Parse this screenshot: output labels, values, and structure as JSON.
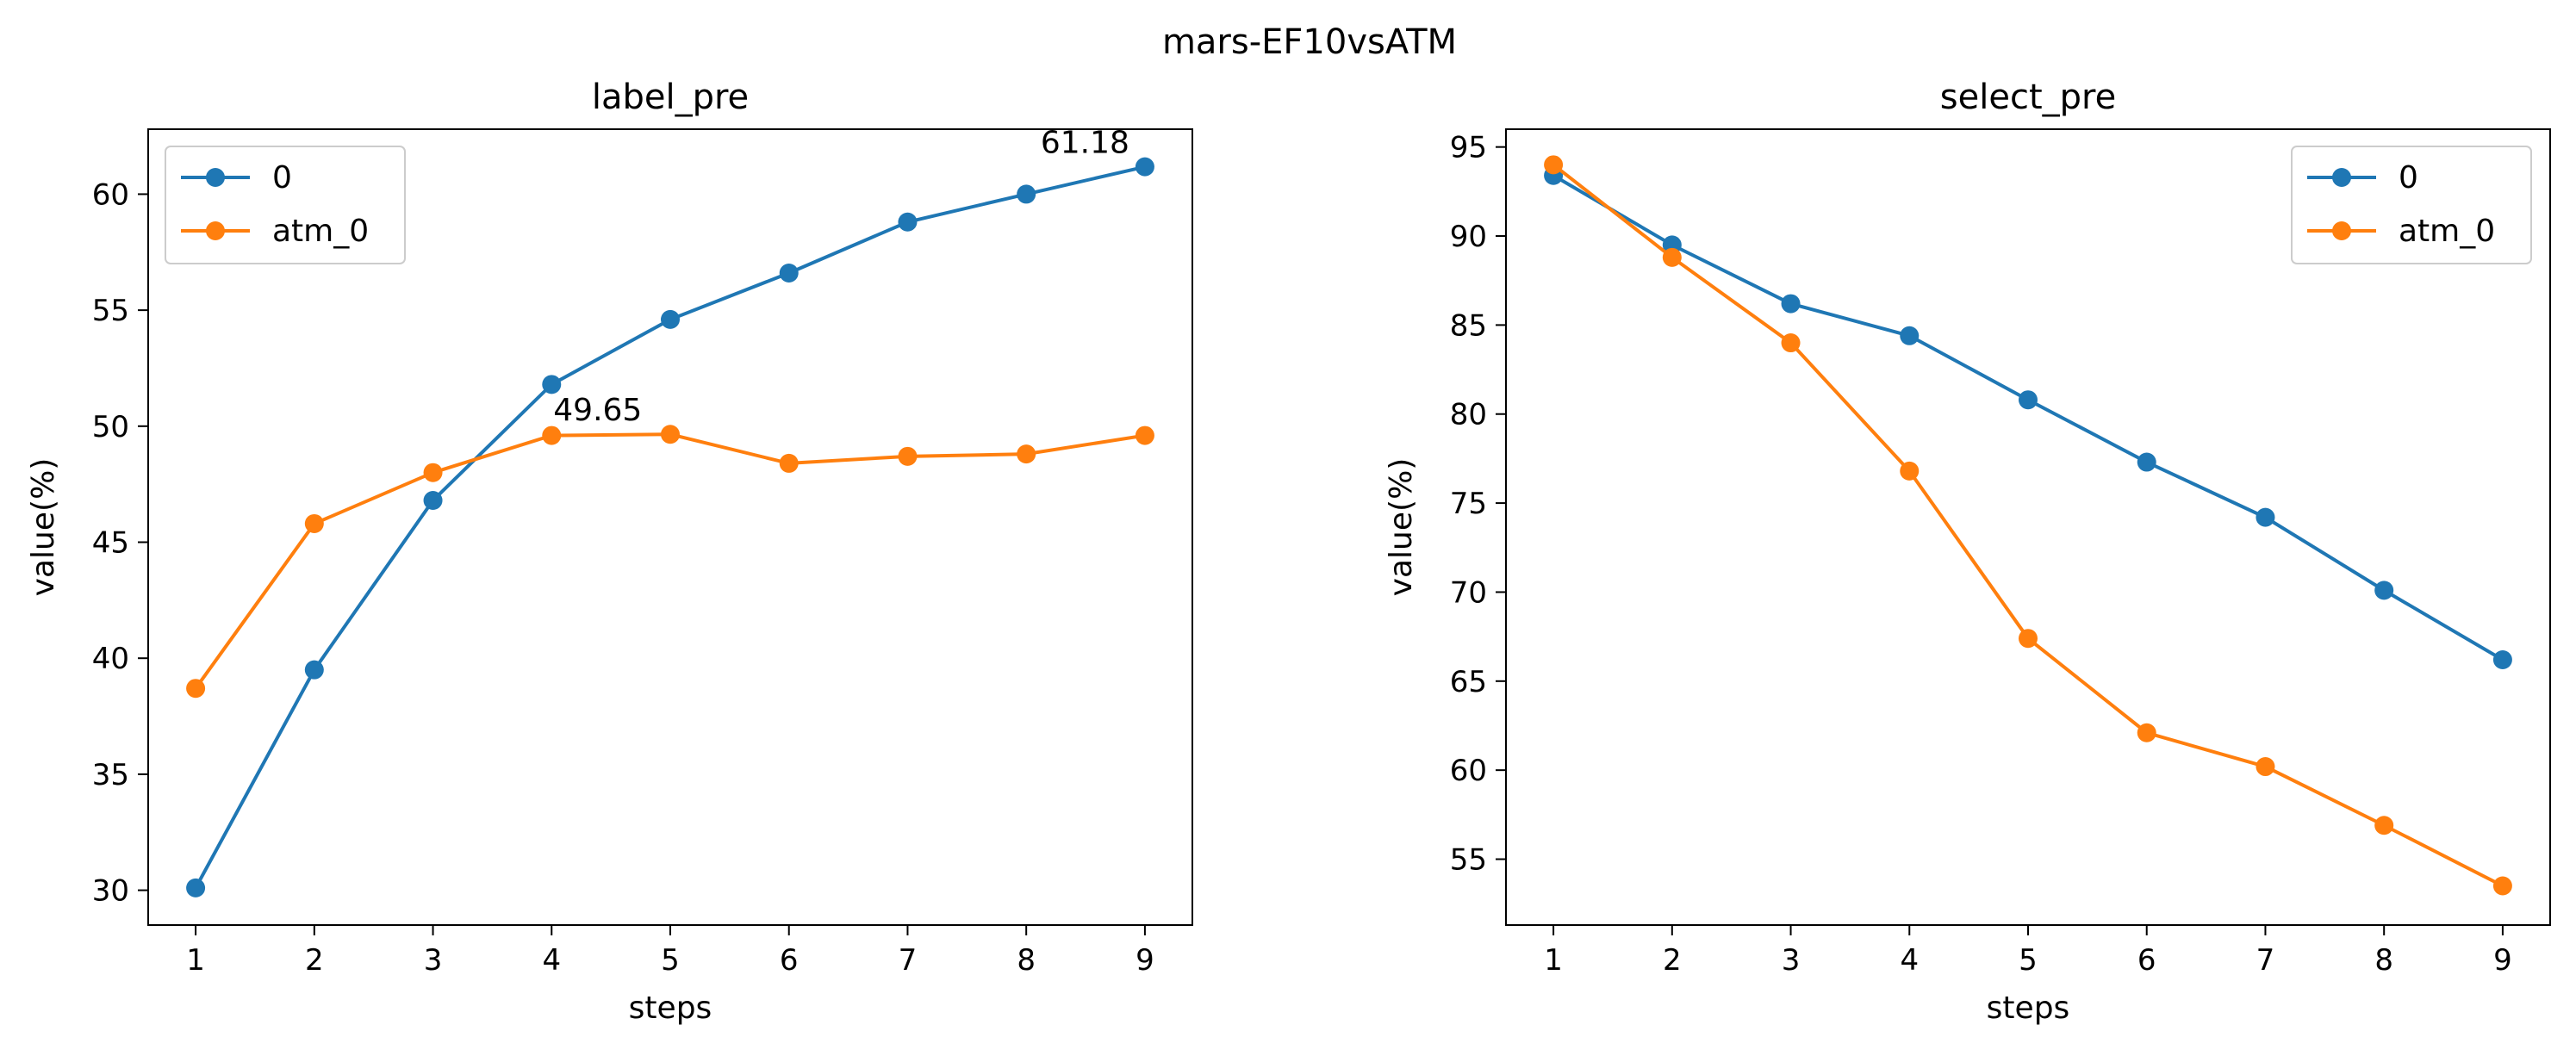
{
  "figure": {
    "title": "mars-EF10vsATM"
  },
  "colors": {
    "series0": "#1f77b4",
    "series1": "#ff7f0e"
  },
  "chart_data": [
    {
      "type": "line",
      "title": "label_pre",
      "xlabel": "steps",
      "ylabel": "value(%)",
      "x": [
        1,
        2,
        3,
        4,
        5,
        6,
        7,
        8,
        9
      ],
      "xlim": [
        0.6,
        9.4
      ],
      "ylim": [
        28.5,
        62.8
      ],
      "yticks": [
        30,
        35,
        40,
        45,
        50,
        55,
        60
      ],
      "legend": "upper left",
      "series": [
        {
          "name": "0",
          "color": "#1f77b4",
          "values": [
            30.1,
            39.5,
            46.8,
            51.8,
            54.6,
            56.6,
            58.8,
            60.0,
            61.18
          ]
        },
        {
          "name": "atm_0",
          "color": "#ff7f0e",
          "values": [
            38.7,
            45.8,
            48.0,
            49.6,
            49.65,
            48.4,
            48.7,
            48.8,
            49.6
          ]
        }
      ],
      "annotations": [
        {
          "text": "61.18",
          "x": 9,
          "y": 61.18
        },
        {
          "text": "49.65",
          "x": 4,
          "y": 49.65
        }
      ]
    },
    {
      "type": "line",
      "title": "select_pre",
      "xlabel": "steps",
      "ylabel": "value(%)",
      "x": [
        1,
        2,
        3,
        4,
        5,
        6,
        7,
        8,
        9
      ],
      "xlim": [
        0.6,
        9.4
      ],
      "ylim": [
        51.3,
        96.0
      ],
      "yticks": [
        55,
        60,
        65,
        70,
        75,
        80,
        85,
        90,
        95
      ],
      "legend": "upper right",
      "series": [
        {
          "name": "0",
          "color": "#1f77b4",
          "values": [
            93.4,
            89.5,
            86.2,
            84.4,
            80.8,
            77.3,
            74.2,
            70.1,
            66.2
          ]
        },
        {
          "name": "atm_0",
          "color": "#ff7f0e",
          "values": [
            94.0,
            88.8,
            84.0,
            76.8,
            67.4,
            62.1,
            60.2,
            56.9,
            53.5
          ]
        }
      ],
      "annotations": []
    }
  ]
}
